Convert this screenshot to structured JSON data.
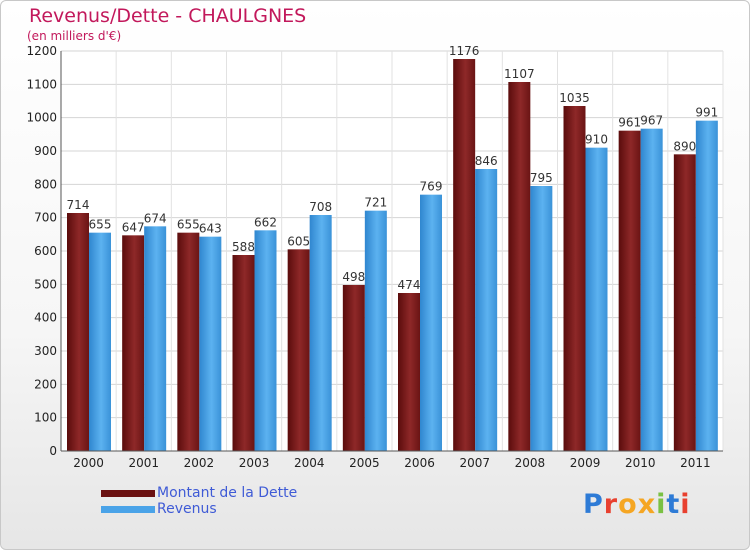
{
  "chart_data": {
    "type": "bar",
    "title": "Revenus/Dette - CHAULGNES",
    "subtitle": "(en milliers d'€)",
    "categories": [
      "2000",
      "2001",
      "2002",
      "2003",
      "2004",
      "2005",
      "2006",
      "2007",
      "2008",
      "2009",
      "2010",
      "2011"
    ],
    "series": [
      {
        "name": "Montant de la Dette",
        "color": "#7a1a1a",
        "values": [
          714,
          647,
          655,
          588,
          605,
          498,
          474,
          1176,
          1107,
          1035,
          961,
          890
        ]
      },
      {
        "name": "Revenus",
        "color": "#4aa3e8",
        "values": [
          655,
          674,
          643,
          662,
          708,
          721,
          769,
          846,
          795,
          910,
          967,
          991
        ]
      }
    ],
    "ylim": [
      0,
      1200
    ],
    "yticks": [
      0,
      100,
      200,
      300,
      400,
      500,
      600,
      700,
      800,
      900,
      1000,
      1100,
      1200
    ],
    "grid": true,
    "legend_position": "bottom-left"
  },
  "logo": {
    "text": "Proxiti",
    "colors": [
      "#2e7bd6",
      "#e8402f",
      "#f5a623",
      "#f5a623",
      "#7ac143",
      "#2e7bd6",
      "#e8402f"
    ]
  }
}
